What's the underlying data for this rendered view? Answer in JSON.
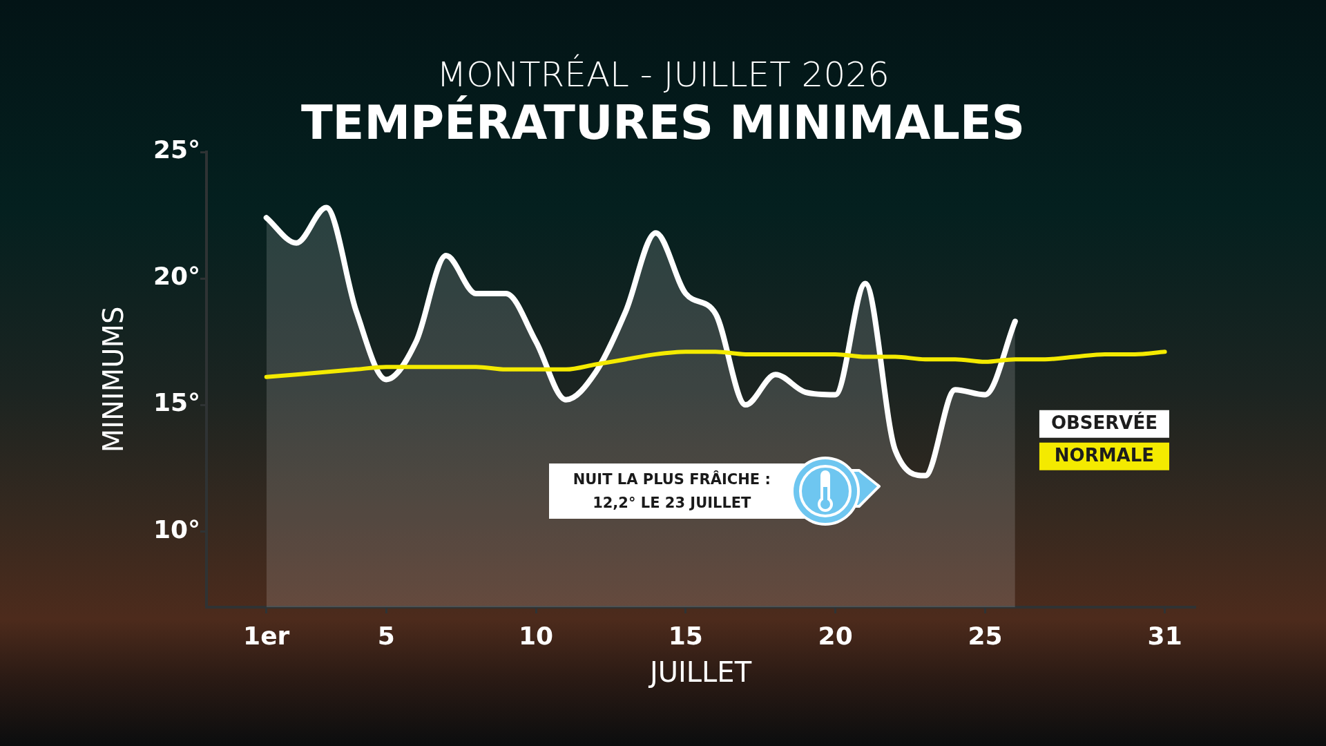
{
  "chart_data": {
    "type": "line",
    "title": "TEMPÉRATURES MINIMALES",
    "subtitle": "MONTRÉAL - JUILLET 2026",
    "xlabel": "JUILLET",
    "ylabel": "MINIMUMS",
    "xlim": [
      -1,
      32
    ],
    "xticks": [
      {
        "value": 1,
        "label": "1er"
      },
      5,
      10,
      15,
      20,
      25,
      31
    ],
    "ylim": [
      7,
      25
    ],
    "yticks": [
      {
        "value": 10,
        "label": "10°"
      },
      {
        "value": 15,
        "label": "15°"
      },
      {
        "value": 20,
        "label": "20°"
      },
      {
        "value": 25,
        "label": "25°"
      }
    ],
    "series": [
      {
        "name": "OBSERVÉE",
        "type": "area",
        "color": "#ffffff",
        "x": [
          1,
          2,
          3,
          4,
          5,
          6,
          7,
          8,
          9,
          10,
          11,
          12,
          13,
          14,
          15,
          16,
          17,
          18,
          19,
          20,
          21,
          22,
          23,
          24,
          25,
          26
        ],
        "values": [
          22.4,
          21.4,
          22.8,
          18.7,
          16.0,
          17.5,
          20.9,
          19.4,
          19.4,
          17.5,
          15.2,
          16.3,
          18.7,
          21.8,
          19.4,
          18.6,
          15.0,
          16.2,
          15.5,
          15.4,
          19.8,
          13.2,
          12.2,
          15.6,
          15.4,
          18.3
        ]
      },
      {
        "name": "NORMALE",
        "color": "#f4ea00",
        "x": [
          1,
          2,
          3,
          4,
          5,
          6,
          7,
          8,
          9,
          10,
          11,
          12,
          13,
          14,
          15,
          16,
          17,
          18,
          19,
          20,
          21,
          22,
          23,
          24,
          25,
          26,
          27,
          28,
          29,
          30,
          31
        ],
        "values": [
          16.1,
          16.2,
          16.3,
          16.4,
          16.5,
          16.5,
          16.5,
          16.5,
          16.4,
          16.4,
          16.4,
          16.6,
          16.8,
          17.0,
          17.1,
          17.1,
          17.0,
          17.0,
          17.0,
          17.0,
          16.9,
          16.9,
          16.8,
          16.8,
          16.7,
          16.8,
          16.8,
          16.9,
          17.0,
          17.0,
          17.1
        ]
      }
    ],
    "legend": "right",
    "marker": "none",
    "annotations": [
      "NUIT LA PLUS FRÂICHE :\n12,2° LE 23 JUILLET"
    ]
  }
}
